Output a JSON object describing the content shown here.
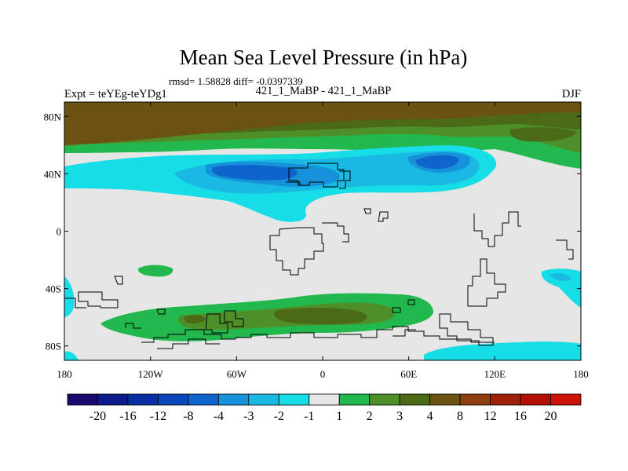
{
  "title": "Mean Sea Level Pressure (in hPa)",
  "stats_line": "rmsd= 1.58828 diff= -0.0397339",
  "left_label": "Expt = teYEg-teYDg1",
  "center_label": "421_1_MaBP - 421_1_MaBP",
  "right_label": "DJF",
  "map": {
    "lat_ticks": [
      "80N",
      "40N",
      "0",
      "40S",
      "80S"
    ],
    "lon_ticks": [
      "180",
      "120W",
      "60W",
      "0",
      "60E",
      "120E",
      "180"
    ],
    "lon_range": [
      -180,
      180
    ],
    "lat_range": [
      -90,
      90
    ]
  },
  "colorbar": {
    "levels": [
      "-20",
      "-16",
      "-12",
      "-8",
      "-4",
      "-3",
      "-2",
      "-1",
      "1",
      "2",
      "3",
      "4",
      "8",
      "12",
      "16",
      "20"
    ],
    "colors": [
      "#1a0a6e",
      "#0d1a8c",
      "#0a2fa5",
      "#0b47b8",
      "#0f64cc",
      "#1592d9",
      "#1ab9e3",
      "#17dde6",
      "#e6e6e6",
      "#22b84e",
      "#4f8f2a",
      "#4b6a18",
      "#6a5312",
      "#8a3f0c",
      "#9e2108",
      "#b30f05",
      "#cc1406"
    ]
  },
  "palette": {
    "neutral": "#e6e6e6",
    "cyan": "#17dde6",
    "light_blue": "#1ab9e3",
    "blue": "#1592d9",
    "dark_blue": "#0f64cc",
    "green": "#22b84e",
    "mid_green": "#4f8f2a",
    "olive": "#4b6a18",
    "brown": "#6a5312"
  }
}
